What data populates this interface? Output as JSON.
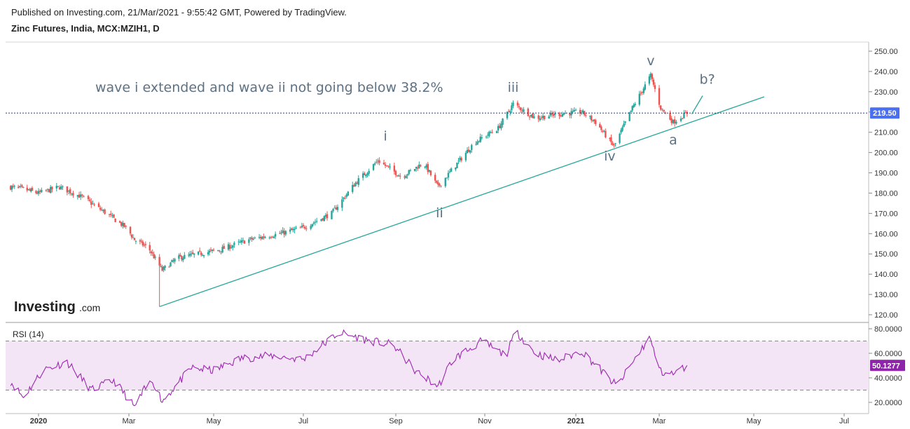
{
  "header": {
    "published": "Published on Investing.com, 21/Mar/2021 - 9:55:42 GMT, Powered by TradingView.",
    "instrument": "Zinc Futures, India, MCX:MZIH1, D"
  },
  "logo": {
    "main": "Investing",
    "suffix": ".com"
  },
  "annotation_note": "wave i extended and wave ii not going below 38.2%",
  "colors": {
    "up": "#26a69a",
    "down": "#ef5350",
    "trendline": "#26a69a",
    "price_line": "#1f3bb3",
    "price_badge": "#4a6ff0",
    "rsi_line": "#9c27b0",
    "rsi_badge": "#8e24aa",
    "rsi_band": "#f3e5f5"
  },
  "chart_data": [
    {
      "type": "candlestick",
      "title": "Zinc Futures, India, MCX:MZIH1, D",
      "y_axis_ticks": [
        "250.00",
        "240.00",
        "230.00",
        "220.00",
        "210.00",
        "200.00",
        "190.00",
        "180.00",
        "170.00",
        "160.00",
        "150.00",
        "140.00",
        "130.00",
        "120.00"
      ],
      "ylim": [
        117,
        254
      ],
      "x_axis_ticks": [
        "2020",
        "Mar",
        "May",
        "Jul",
        "Sep",
        "Nov",
        "2021",
        "Mar",
        "May",
        "Jul"
      ],
      "current_price": "219.50",
      "close_path": [
        {
          "x": "2019-12-10",
          "y": 183
        },
        {
          "x": "2019-12-20",
          "y": 182
        },
        {
          "x": "2020-01-01",
          "y": 180
        },
        {
          "x": "2020-01-15",
          "y": 183
        },
        {
          "x": "2020-01-30",
          "y": 178
        },
        {
          "x": "2020-02-15",
          "y": 170
        },
        {
          "x": "2020-02-28",
          "y": 163
        },
        {
          "x": "2020-03-05",
          "y": 157
        },
        {
          "x": "2020-03-15",
          "y": 153
        },
        {
          "x": "2020-03-25",
          "y": 142
        },
        {
          "x": "2020-04-05",
          "y": 148
        },
        {
          "x": "2020-04-20",
          "y": 150
        },
        {
          "x": "2020-05-05",
          "y": 152
        },
        {
          "x": "2020-05-25",
          "y": 157
        },
        {
          "x": "2020-06-15",
          "y": 160
        },
        {
          "x": "2020-07-01",
          "y": 163
        },
        {
          "x": "2020-07-20",
          "y": 170
        },
        {
          "x": "2020-08-05",
          "y": 185
        },
        {
          "x": "2020-08-20",
          "y": 196
        },
        {
          "x": "2020-09-05",
          "y": 188
        },
        {
          "x": "2020-09-20",
          "y": 195
        },
        {
          "x": "2020-09-30",
          "y": 183
        },
        {
          "x": "2020-10-10",
          "y": 192
        },
        {
          "x": "2020-10-25",
          "y": 205
        },
        {
          "x": "2020-11-10",
          "y": 212
        },
        {
          "x": "2020-11-20",
          "y": 224
        },
        {
          "x": "2020-12-05",
          "y": 217
        },
        {
          "x": "2020-12-20",
          "y": 219
        },
        {
          "x": "2021-01-05",
          "y": 220
        },
        {
          "x": "2021-01-15",
          "y": 215
        },
        {
          "x": "2021-01-28",
          "y": 203
        },
        {
          "x": "2021-02-10",
          "y": 222
        },
        {
          "x": "2021-02-23",
          "y": 238
        },
        {
          "x": "2021-03-02",
          "y": 222
        },
        {
          "x": "2021-03-10",
          "y": 215
        },
        {
          "x": "2021-03-19",
          "y": 219.5
        }
      ],
      "wave_labels": [
        {
          "text": "i",
          "x": "2020-08-25",
          "y": 206
        },
        {
          "text": "ii",
          "x": "2020-10-01",
          "y": 168
        },
        {
          "text": "iii",
          "x": "2020-11-20",
          "y": 230
        },
        {
          "text": "iv",
          "x": "2021-01-25",
          "y": 196
        },
        {
          "text": "v",
          "x": "2021-02-23",
          "y": 243
        },
        {
          "text": "a",
          "x": "2021-03-10",
          "y": 204
        },
        {
          "text": "b?",
          "x": "2021-04-01",
          "y": 234
        }
      ],
      "trendline": [
        {
          "x": "2020-03-23",
          "y": 124
        },
        {
          "x": "2021-05-08",
          "y": 227.5
        }
      ]
    },
    {
      "type": "line",
      "title": "RSI (14)",
      "y_axis_ticks": [
        "80.0000",
        "60.0000",
        "40.0000",
        "20.0000"
      ],
      "ylim": [
        13,
        83
      ],
      "band": [
        30,
        70
      ],
      "current_value": "50.1277",
      "path": [
        {
          "x": "2019-12-10",
          "y": 37
        },
        {
          "x": "2019-12-20",
          "y": 24
        },
        {
          "x": "2020-01-05",
          "y": 47
        },
        {
          "x": "2020-01-20",
          "y": 53
        },
        {
          "x": "2020-02-05",
          "y": 30
        },
        {
          "x": "2020-02-20",
          "y": 38
        },
        {
          "x": "2020-03-05",
          "y": 16
        },
        {
          "x": "2020-03-12",
          "y": 30
        },
        {
          "x": "2020-03-18",
          "y": 38
        },
        {
          "x": "2020-03-25",
          "y": 21
        },
        {
          "x": "2020-04-15",
          "y": 48
        },
        {
          "x": "2020-05-01",
          "y": 46
        },
        {
          "x": "2020-05-20",
          "y": 56
        },
        {
          "x": "2020-06-10",
          "y": 58
        },
        {
          "x": "2020-07-01",
          "y": 55
        },
        {
          "x": "2020-07-25",
          "y": 77
        },
        {
          "x": "2020-08-15",
          "y": 70
        },
        {
          "x": "2020-08-30",
          "y": 67
        },
        {
          "x": "2020-09-15",
          "y": 45
        },
        {
          "x": "2020-09-30",
          "y": 33
        },
        {
          "x": "2020-10-10",
          "y": 55
        },
        {
          "x": "2020-10-30",
          "y": 70
        },
        {
          "x": "2020-11-15",
          "y": 58
        },
        {
          "x": "2020-11-22",
          "y": 78
        },
        {
          "x": "2020-12-05",
          "y": 60
        },
        {
          "x": "2020-12-20",
          "y": 54
        },
        {
          "x": "2021-01-05",
          "y": 62
        },
        {
          "x": "2021-01-20",
          "y": 45
        },
        {
          "x": "2021-01-30",
          "y": 33
        },
        {
          "x": "2021-02-10",
          "y": 52
        },
        {
          "x": "2021-02-22",
          "y": 73
        },
        {
          "x": "2021-03-02",
          "y": 45
        },
        {
          "x": "2021-03-10",
          "y": 43
        },
        {
          "x": "2021-03-19",
          "y": 50.1277
        }
      ]
    }
  ]
}
